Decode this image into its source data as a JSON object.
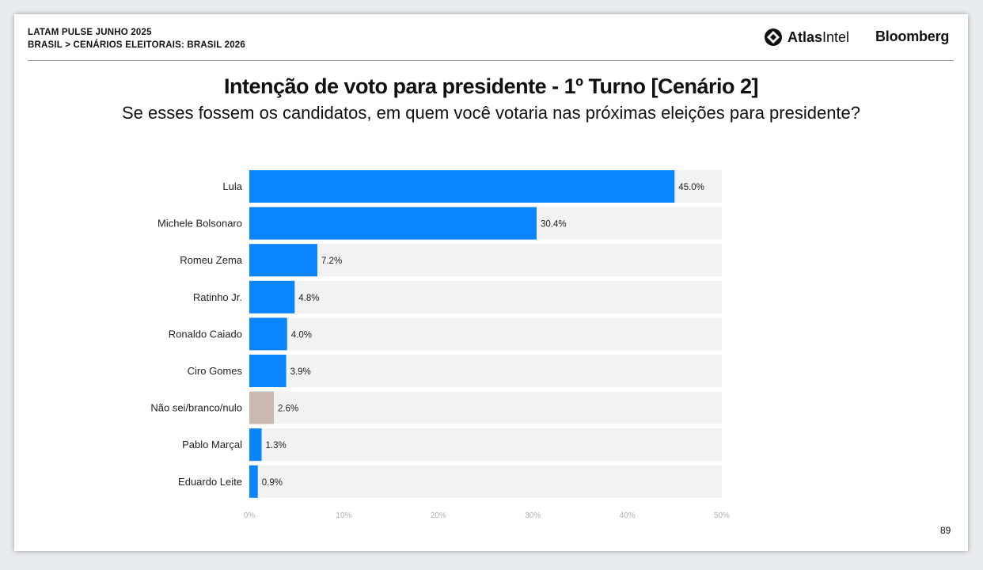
{
  "header": {
    "line1": "LATAM PULSE JUNHO 2025",
    "line2": "BRASIL > CENÁRIOS ELEITORAIS: BRASIL 2026"
  },
  "logos": {
    "atlas_bold": "Atlas",
    "atlas_light": "Intel",
    "bloomberg": "Bloomberg"
  },
  "page_number": "89",
  "colors": {
    "bar": "#0a84ff",
    "bar_undecided": "#c9b9b1",
    "track": "#f2f2f2"
  },
  "chart_data": {
    "type": "bar",
    "orientation": "horizontal",
    "title": "Intenção de voto para presidente - 1º Turno [Cenário 2]",
    "subtitle": "Se esses fossem os candidatos, em quem você votaria nas próximas eleições para presidente?",
    "categories": [
      "Lula",
      "Michele Bolsonaro",
      "Romeu Zema",
      "Ratinho Jr.",
      "Ronaldo Caiado",
      "Ciro Gomes",
      "Não sei/branco/nulo",
      "Pablo Marçal",
      "Eduardo Leite"
    ],
    "values": [
      45.0,
      30.4,
      7.2,
      4.8,
      4.0,
      3.9,
      2.6,
      1.3,
      0.9
    ],
    "value_labels": [
      "45.0%",
      "30.4%",
      "7.2%",
      "4.8%",
      "4.0%",
      "3.9%",
      "2.6%",
      "1.3%",
      "0.9%"
    ],
    "highlight_category": "Não sei/branco/nulo",
    "xlim": [
      0,
      50
    ],
    "x_ticks": [
      0,
      10,
      20,
      30,
      40,
      50
    ],
    "x_tick_labels": [
      "0%",
      "10%",
      "20%",
      "30%",
      "40%",
      "50%"
    ],
    "xlabel": "",
    "ylabel": "",
    "grid": false,
    "legend": "none"
  }
}
